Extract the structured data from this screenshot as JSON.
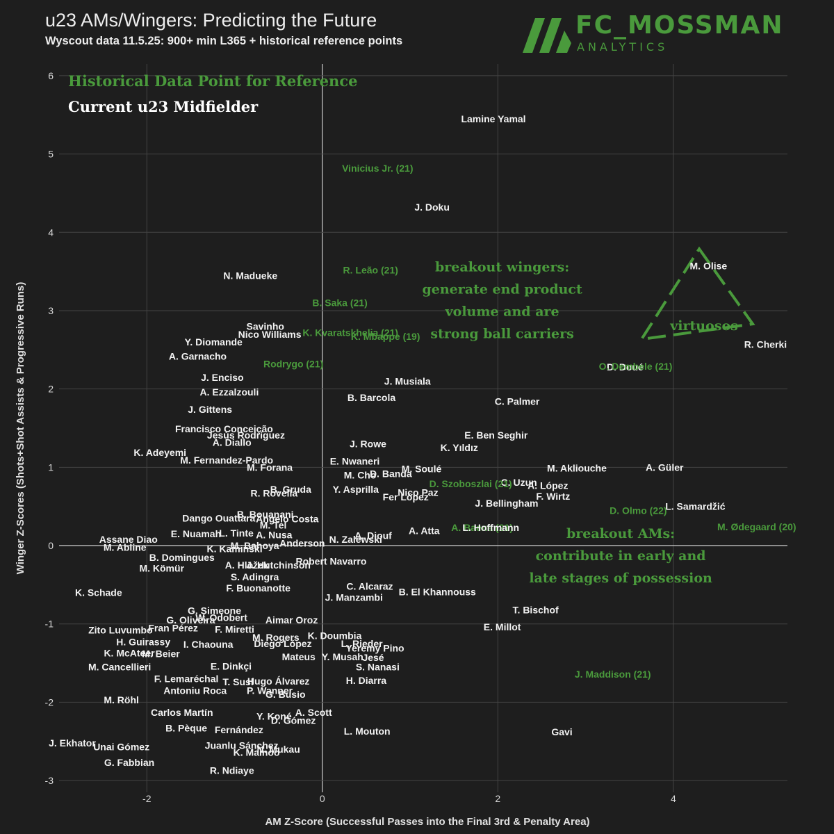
{
  "header": {
    "title": "u23 AMs/Wingers: Predicting the Future",
    "subtitle": "Wyscout data 11.5.25: 900+ min L365 + historical reference points"
  },
  "logo": {
    "main": "FC_MOSSMAN",
    "sub": "ANALYTICS"
  },
  "colors": {
    "background": "#1e1e1e",
    "current": "#f2f2f2",
    "historical": "#4a9a3c",
    "grid": "#444444"
  },
  "chart_data": {
    "type": "scatter",
    "xlabel": "AM Z-Score (Successful Passes into the Final 3rd & Penalty Area)",
    "ylabel": "Winger Z-Scores (Shots+Shot Assists & Progressive Runs)",
    "xlim": [
      -3.0,
      5.3
    ],
    "ylim": [
      -3.15,
      6.15
    ],
    "xticks": [
      -2,
      0,
      2,
      4
    ],
    "yticks": [
      -3,
      -2,
      -1,
      0,
      1,
      2,
      3,
      4,
      5,
      6
    ],
    "grid": true,
    "legend": {
      "placement": "top-left",
      "entries": [
        {
          "label": "Historical Data Point for Reference",
          "group": "historical"
        },
        {
          "label": "Current u23 Midfielder",
          "group": "current"
        }
      ]
    },
    "annotations": [
      {
        "lines": [
          "breakout wingers:",
          "generate end product",
          "volume and are",
          "strong ball carriers"
        ],
        "x": 2.05,
        "y": 3.5
      },
      {
        "lines": [
          "breakout AMs:",
          "contribute in early and",
          "late stages of possession"
        ],
        "x": 3.4,
        "y": 0.1
      },
      {
        "lines": [
          "virtuosos"
        ],
        "x": 4.35,
        "y": 2.75,
        "shape": "triangle"
      }
    ],
    "points": [
      {
        "label": "Lamine Yamal",
        "x": 1.95,
        "y": 5.45,
        "group": "current"
      },
      {
        "label": "Vinicius Jr. (21)",
        "x": 0.63,
        "y": 4.82,
        "group": "historical"
      },
      {
        "label": "J. Doku",
        "x": 1.25,
        "y": 4.32,
        "group": "current"
      },
      {
        "label": "N. Madueke",
        "x": -0.82,
        "y": 3.45,
        "group": "current"
      },
      {
        "label": "R. Leão (21)",
        "x": 0.55,
        "y": 3.52,
        "group": "historical"
      },
      {
        "label": "M. Olise",
        "x": 4.4,
        "y": 3.57,
        "group": "current"
      },
      {
        "label": "B. Saka (21)",
        "x": 0.2,
        "y": 3.1,
        "group": "historical"
      },
      {
        "label": "Savinho",
        "x": -0.65,
        "y": 2.8,
        "group": "current"
      },
      {
        "label": "Nico Williams",
        "x": -0.6,
        "y": 2.7,
        "group": "current"
      },
      {
        "label": "K. Kvaratskhelia (21)",
        "x": 0.32,
        "y": 2.72,
        "group": "historical"
      },
      {
        "label": "K. Mbappe (19)",
        "x": 0.72,
        "y": 2.67,
        "group": "historical"
      },
      {
        "label": "Y. Diomande",
        "x": -1.24,
        "y": 2.6,
        "group": "current"
      },
      {
        "label": "R. Cherki",
        "x": 5.05,
        "y": 2.57,
        "group": "current"
      },
      {
        "label": "A. Garnacho",
        "x": -1.42,
        "y": 2.42,
        "group": "current"
      },
      {
        "label": "Rodrygo (21)",
        "x": -0.33,
        "y": 2.32,
        "group": "historical"
      },
      {
        "label": "D. Doué",
        "x": 3.45,
        "y": 2.28,
        "group": "current"
      },
      {
        "label": "O. Dembele (21)",
        "x": 3.57,
        "y": 2.29,
        "group": "historical"
      },
      {
        "label": "J. Musiala",
        "x": 0.97,
        "y": 2.1,
        "group": "current"
      },
      {
        "label": "J. Enciso",
        "x": -1.14,
        "y": 2.15,
        "group": "current"
      },
      {
        "label": "A. Ezzalzouli",
        "x": -1.06,
        "y": 1.96,
        "group": "current"
      },
      {
        "label": "B. Barcola",
        "x": 0.56,
        "y": 1.89,
        "group": "current"
      },
      {
        "label": "C. Palmer",
        "x": 2.22,
        "y": 1.84,
        "group": "current"
      },
      {
        "label": "J. Gittens",
        "x": -1.28,
        "y": 1.74,
        "group": "current"
      },
      {
        "label": "Francisco Conceição",
        "x": -1.12,
        "y": 1.49,
        "group": "current"
      },
      {
        "label": "Jesús Rodríguez",
        "x": -0.87,
        "y": 1.41,
        "group": "current"
      },
      {
        "label": "E. Ben Seghir",
        "x": 1.98,
        "y": 1.41,
        "group": "current"
      },
      {
        "label": "A. Diallo",
        "x": -1.03,
        "y": 1.32,
        "group": "current"
      },
      {
        "label": "J. Rowe",
        "x": 0.52,
        "y": 1.3,
        "group": "current"
      },
      {
        "label": "K. Yıldız",
        "x": 1.56,
        "y": 1.25,
        "group": "current"
      },
      {
        "label": "K. Adeyemi",
        "x": -1.85,
        "y": 1.19,
        "group": "current"
      },
      {
        "label": "M. Fernandez-Pardo",
        "x": -1.09,
        "y": 1.09,
        "group": "current"
      },
      {
        "label": "E. Nwaneri",
        "x": 0.37,
        "y": 1.08,
        "group": "current"
      },
      {
        "label": "M. Forana",
        "x": -0.6,
        "y": 1.0,
        "group": "current"
      },
      {
        "label": "M. Soulé",
        "x": 1.13,
        "y": 0.98,
        "group": "current"
      },
      {
        "label": "M. Akliouche",
        "x": 2.9,
        "y": 0.99,
        "group": "current"
      },
      {
        "label": "A. Güler",
        "x": 3.9,
        "y": 1.0,
        "group": "current"
      },
      {
        "label": "M. Cho",
        "x": 0.43,
        "y": 0.9,
        "group": "current"
      },
      {
        "label": "D. Banda",
        "x": 0.78,
        "y": 0.92,
        "group": "current"
      },
      {
        "label": "C. Uzun",
        "x": 2.24,
        "y": 0.81,
        "group": "current"
      },
      {
        "label": "D. Szoboszlai (21)",
        "x": 1.69,
        "y": 0.79,
        "group": "historical"
      },
      {
        "label": "A. López",
        "x": 2.57,
        "y": 0.77,
        "group": "current"
      },
      {
        "label": "B. Gruda",
        "x": -0.36,
        "y": 0.72,
        "group": "current"
      },
      {
        "label": "Y. Asprilla",
        "x": 0.38,
        "y": 0.72,
        "group": "current"
      },
      {
        "label": "R. Rovella",
        "x": -0.55,
        "y": 0.67,
        "group": "current"
      },
      {
        "label": "Nico Paz",
        "x": 1.09,
        "y": 0.68,
        "group": "current"
      },
      {
        "label": "Fer López",
        "x": 0.95,
        "y": 0.62,
        "group": "current"
      },
      {
        "label": "F. Wirtz",
        "x": 2.63,
        "y": 0.63,
        "group": "current"
      },
      {
        "label": "J. Bellingham",
        "x": 2.1,
        "y": 0.54,
        "group": "current"
      },
      {
        "label": "L. Samardžić",
        "x": 4.25,
        "y": 0.5,
        "group": "current"
      },
      {
        "label": "D. Olmo (22)",
        "x": 3.6,
        "y": 0.45,
        "group": "historical"
      },
      {
        "label": "B. Bouanani",
        "x": -0.65,
        "y": 0.4,
        "group": "current"
      },
      {
        "label": "Dango Ouattara",
        "x": -1.18,
        "y": 0.35,
        "group": "current"
      },
      {
        "label": "Ángelo Costa",
        "x": -0.4,
        "y": 0.34,
        "group": "current"
      },
      {
        "label": "A. Atta",
        "x": 1.16,
        "y": 0.19,
        "group": "current"
      },
      {
        "label": "A. Baena (21)",
        "x": 1.82,
        "y": 0.23,
        "group": "historical"
      },
      {
        "label": "L. Hoffmann",
        "x": 1.92,
        "y": 0.23,
        "group": "current"
      },
      {
        "label": "M. Ødegaard (20)",
        "x": 4.95,
        "y": 0.24,
        "group": "historical"
      },
      {
        "label": "E. Nuamah",
        "x": -1.44,
        "y": 0.15,
        "group": "current"
      },
      {
        "label": "L. Tinte",
        "x": -0.98,
        "y": 0.16,
        "group": "current"
      },
      {
        "label": "M. Tel",
        "x": -0.56,
        "y": 0.26,
        "group": "current"
      },
      {
        "label": "A. Nusa",
        "x": -0.55,
        "y": 0.14,
        "group": "current"
      },
      {
        "label": "A. Diouf",
        "x": 0.58,
        "y": 0.13,
        "group": "current"
      },
      {
        "label": "Assane Diao",
        "x": -2.21,
        "y": 0.08,
        "group": "current"
      },
      {
        "label": "N. Zalewski",
        "x": 0.38,
        "y": 0.08,
        "group": "current"
      },
      {
        "label": "Anderson",
        "x": -0.23,
        "y": 0.03,
        "group": "current"
      },
      {
        "label": "M. Abline",
        "x": -2.25,
        "y": -0.02,
        "group": "current"
      },
      {
        "label": "K. Kaminski",
        "x": -1.0,
        "y": -0.04,
        "group": "current"
      },
      {
        "label": "M. Bahoya",
        "x": -0.77,
        "y": 0.0,
        "group": "current"
      },
      {
        "label": "B. Domingues",
        "x": -1.6,
        "y": -0.15,
        "group": "current"
      },
      {
        "label": "Robert Navarro",
        "x": 0.1,
        "y": -0.2,
        "group": "current"
      },
      {
        "label": "A. Hložek",
        "x": -0.86,
        "y": -0.25,
        "group": "current"
      },
      {
        "label": "J. Hutchinson",
        "x": -0.5,
        "y": -0.25,
        "group": "current"
      },
      {
        "label": "M. Kömür",
        "x": -1.83,
        "y": -0.29,
        "group": "current"
      },
      {
        "label": "S. Adingra",
        "x": -0.77,
        "y": -0.4,
        "group": "current"
      },
      {
        "label": "C. Alcaraz",
        "x": 0.54,
        "y": -0.52,
        "group": "current"
      },
      {
        "label": "F. Buonanotte",
        "x": -0.73,
        "y": -0.54,
        "group": "current"
      },
      {
        "label": "B. El Khannouss",
        "x": 1.31,
        "y": -0.59,
        "group": "current"
      },
      {
        "label": "K. Schade",
        "x": -2.55,
        "y": -0.6,
        "group": "current"
      },
      {
        "label": "J. Manzambi",
        "x": 0.36,
        "y": -0.66,
        "group": "current"
      },
      {
        "label": "T. Bischof",
        "x": 2.43,
        "y": -0.82,
        "group": "current"
      },
      {
        "label": "G. Simeone",
        "x": -1.23,
        "y": -0.83,
        "group": "current"
      },
      {
        "label": "W. Odobert",
        "x": -1.15,
        "y": -0.92,
        "group": "current"
      },
      {
        "label": "G. Oliveira",
        "x": -1.5,
        "y": -0.95,
        "group": "current"
      },
      {
        "label": "Aimar Oroz",
        "x": -0.35,
        "y": -0.95,
        "group": "current"
      },
      {
        "label": "E. Millot",
        "x": 2.05,
        "y": -1.04,
        "group": "current"
      },
      {
        "label": "Fran Pérez",
        "x": -1.7,
        "y": -1.05,
        "group": "current"
      },
      {
        "label": "F. Miretti",
        "x": -1.0,
        "y": -1.07,
        "group": "current"
      },
      {
        "label": "Zito Luvumbo",
        "x": -2.3,
        "y": -1.08,
        "group": "current"
      },
      {
        "label": "K. Doumbia",
        "x": 0.14,
        "y": -1.15,
        "group": "current"
      },
      {
        "label": "M. Rogers",
        "x": -0.53,
        "y": -1.17,
        "group": "current"
      },
      {
        "label": "H. Guirassy",
        "x": -2.04,
        "y": -1.23,
        "group": "current"
      },
      {
        "label": "I. Chaouna",
        "x": -1.3,
        "y": -1.26,
        "group": "current"
      },
      {
        "label": "Diego López",
        "x": -0.45,
        "y": -1.25,
        "group": "current"
      },
      {
        "label": "L. Rieder",
        "x": 0.45,
        "y": -1.25,
        "group": "current"
      },
      {
        "label": "Yeremy Pino",
        "x": 0.6,
        "y": -1.31,
        "group": "current"
      },
      {
        "label": "K. McAteer",
        "x": -2.2,
        "y": -1.37,
        "group": "current"
      },
      {
        "label": "M. Beier",
        "x": -1.84,
        "y": -1.38,
        "group": "current"
      },
      {
        "label": "Mateus",
        "x": -0.27,
        "y": -1.42,
        "group": "current"
      },
      {
        "label": "Y. Musah",
        "x": 0.23,
        "y": -1.42,
        "group": "current"
      },
      {
        "label": "Jesé",
        "x": 0.58,
        "y": -1.43,
        "group": "current"
      },
      {
        "label": "E. Dinkçi",
        "x": -1.04,
        "y": -1.54,
        "group": "current"
      },
      {
        "label": "M. Cancellieri",
        "x": -2.31,
        "y": -1.55,
        "group": "current"
      },
      {
        "label": "S. Nanasi",
        "x": 0.63,
        "y": -1.55,
        "group": "current"
      },
      {
        "label": "F. Lemaréchal",
        "x": -1.55,
        "y": -1.7,
        "group": "current"
      },
      {
        "label": "Hugo Álvarez",
        "x": -0.5,
        "y": -1.73,
        "group": "current"
      },
      {
        "label": "H. Diarra",
        "x": 0.5,
        "y": -1.72,
        "group": "current"
      },
      {
        "label": "J. Maddison (21)",
        "x": 3.31,
        "y": -1.64,
        "group": "historical"
      },
      {
        "label": "T. Susl",
        "x": -0.96,
        "y": -1.74,
        "group": "current"
      },
      {
        "label": "Antoniu Roca",
        "x": -1.45,
        "y": -1.85,
        "group": "current"
      },
      {
        "label": "P. Wanner",
        "x": -0.6,
        "y": -1.85,
        "group": "current"
      },
      {
        "label": "G. Busio",
        "x": -0.42,
        "y": -1.9,
        "group": "current"
      },
      {
        "label": "M. Röhl",
        "x": -2.29,
        "y": -1.97,
        "group": "current"
      },
      {
        "label": "Carlos Martín",
        "x": -1.6,
        "y": -2.13,
        "group": "current"
      },
      {
        "label": "Y. Koné",
        "x": -0.55,
        "y": -2.18,
        "group": "current"
      },
      {
        "label": "A. Scott",
        "x": -0.1,
        "y": -2.13,
        "group": "current"
      },
      {
        "label": "D. Gómez",
        "x": -0.33,
        "y": -2.23,
        "group": "current"
      },
      {
        "label": "L. Mouton",
        "x": 0.51,
        "y": -2.37,
        "group": "current"
      },
      {
        "label": "Gavi",
        "x": 2.73,
        "y": -2.38,
        "group": "current"
      },
      {
        "label": "B. Pèque",
        "x": -1.55,
        "y": -2.33,
        "group": "current"
      },
      {
        "label": "Fernández",
        "x": -0.95,
        "y": -2.35,
        "group": "current"
      },
      {
        "label": "J. Ekhator",
        "x": -2.85,
        "y": -2.52,
        "group": "current"
      },
      {
        "label": "Juanlu Sánchez",
        "x": -0.92,
        "y": -2.55,
        "group": "current"
      },
      {
        "label": "Unai Gómez",
        "x": -2.29,
        "y": -2.57,
        "group": "current"
      },
      {
        "label": "K. Mainoo",
        "x": -0.75,
        "y": -2.64,
        "group": "current"
      },
      {
        "label": "N. Mukau",
        "x": -0.5,
        "y": -2.6,
        "group": "current"
      },
      {
        "label": "G. Fabbian",
        "x": -2.2,
        "y": -2.77,
        "group": "current"
      },
      {
        "label": "R. Ndiaye",
        "x": -1.03,
        "y": -2.87,
        "group": "current"
      }
    ]
  }
}
